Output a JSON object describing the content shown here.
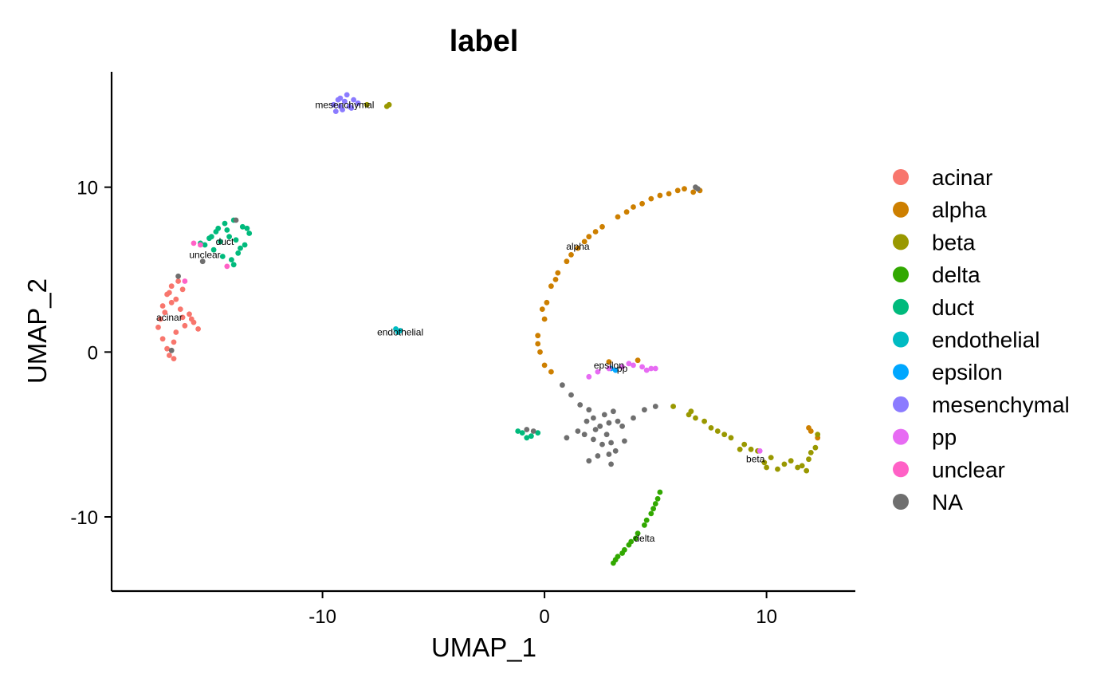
{
  "chart_data": {
    "type": "scatter",
    "title": "label",
    "xlabel": "UMAP_1",
    "ylabel": "UMAP_2",
    "xlim": [
      -19.5,
      14
    ],
    "ylim": [
      -14.5,
      17
    ],
    "xticks": [
      -10,
      0,
      10
    ],
    "xtick_labels": [
      "-10",
      "0",
      "10"
    ],
    "yticks": [
      -10,
      0,
      10
    ],
    "ytick_labels": [
      "-10",
      "0",
      "10"
    ],
    "grid": false,
    "legend": "right",
    "series": [
      {
        "name": "acinar",
        "color": "#F8766D",
        "points": [
          [
            -17.2,
            2.8
          ],
          [
            -17.0,
            3.5
          ],
          [
            -16.8,
            4.0
          ],
          [
            -16.5,
            4.3
          ],
          [
            -16.3,
            3.8
          ],
          [
            -16.8,
            3.0
          ],
          [
            -17.3,
            2.0
          ],
          [
            -17.4,
            1.5
          ],
          [
            -17.2,
            0.8
          ],
          [
            -17.0,
            0.2
          ],
          [
            -16.9,
            -0.2
          ],
          [
            -16.6,
            1.2
          ],
          [
            -16.3,
            2.1
          ],
          [
            -16.0,
            2.3
          ],
          [
            -15.8,
            1.8
          ],
          [
            -15.6,
            1.4
          ],
          [
            -16.9,
            3.6
          ],
          [
            -16.6,
            3.2
          ],
          [
            -17.1,
            2.4
          ],
          [
            -16.7,
            0.6
          ],
          [
            -16.4,
            2.6
          ],
          [
            -15.9,
            2.0
          ],
          [
            -16.7,
            -0.4
          ],
          [
            -16.2,
            1.6
          ]
        ]
      },
      {
        "name": "alpha",
        "color": "#CD7F00",
        "points": [
          [
            0.0,
            2.0
          ],
          [
            0.1,
            3.0
          ],
          [
            0.3,
            4.0
          ],
          [
            0.6,
            4.8
          ],
          [
            1.0,
            5.5
          ],
          [
            1.5,
            6.3
          ],
          [
            2.0,
            7.0
          ],
          [
            2.6,
            7.6
          ],
          [
            3.3,
            8.2
          ],
          [
            4.0,
            8.8
          ],
          [
            4.8,
            9.3
          ],
          [
            5.6,
            9.6
          ],
          [
            6.3,
            9.9
          ],
          [
            7.0,
            9.8
          ],
          [
            -0.3,
            1.0
          ],
          [
            -0.2,
            0.0
          ],
          [
            0.0,
            -0.8
          ],
          [
            0.3,
            -1.2
          ],
          [
            1.2,
            5.9
          ],
          [
            2.3,
            7.3
          ],
          [
            3.7,
            8.5
          ],
          [
            5.2,
            9.5
          ],
          [
            6.7,
            9.7
          ],
          [
            -0.1,
            2.6
          ],
          [
            0.5,
            4.4
          ],
          [
            1.8,
            6.7
          ],
          [
            4.4,
            9.0
          ],
          [
            6.0,
            9.8
          ],
          [
            -0.3,
            0.5
          ],
          [
            2.9,
            -0.6
          ],
          [
            4.2,
            -0.5
          ],
          [
            12.0,
            -4.8
          ],
          [
            12.3,
            -5.2
          ],
          [
            11.9,
            -4.6
          ]
        ]
      },
      {
        "name": "beta",
        "color": "#999800",
        "points": [
          [
            5.8,
            -3.3
          ],
          [
            6.5,
            -3.8
          ],
          [
            7.2,
            -4.2
          ],
          [
            7.8,
            -4.8
          ],
          [
            8.4,
            -5.2
          ],
          [
            9.0,
            -5.6
          ],
          [
            9.6,
            -6.0
          ],
          [
            10.2,
            -6.4
          ],
          [
            10.8,
            -6.8
          ],
          [
            11.4,
            -7.0
          ],
          [
            11.9,
            -6.5
          ],
          [
            12.2,
            -5.8
          ],
          [
            12.3,
            -5.0
          ],
          [
            11.6,
            -6.9
          ],
          [
            10.5,
            -7.1
          ],
          [
            9.9,
            -6.7
          ],
          [
            8.8,
            -5.9
          ],
          [
            7.5,
            -4.6
          ],
          [
            6.8,
            -4.0
          ],
          [
            11.1,
            -6.6
          ],
          [
            12.0,
            -6.1
          ],
          [
            10.0,
            -7.0
          ],
          [
            9.3,
            -5.9
          ],
          [
            8.1,
            -5.0
          ],
          [
            -7.1,
            14.9
          ],
          [
            -7.0,
            15.0
          ],
          [
            -8.0,
            15.0
          ],
          [
            6.6,
            -3.6
          ],
          [
            11.8,
            -7.2
          ]
        ]
      },
      {
        "name": "delta",
        "color": "#31A800",
        "points": [
          [
            5.2,
            -8.5
          ],
          [
            5.0,
            -9.2
          ],
          [
            4.8,
            -9.8
          ],
          [
            4.5,
            -10.5
          ],
          [
            4.2,
            -11.0
          ],
          [
            3.9,
            -11.5
          ],
          [
            3.6,
            -12.0
          ],
          [
            3.3,
            -12.4
          ],
          [
            3.1,
            -12.8
          ],
          [
            4.1,
            -11.3
          ],
          [
            4.6,
            -10.2
          ],
          [
            5.1,
            -8.9
          ],
          [
            3.5,
            -12.2
          ],
          [
            3.8,
            -11.7
          ],
          [
            4.9,
            -9.5
          ],
          [
            3.2,
            -12.6
          ]
        ]
      },
      {
        "name": "duct",
        "color": "#00BA7C",
        "points": [
          [
            -15.3,
            6.5
          ],
          [
            -15.0,
            7.0
          ],
          [
            -14.7,
            7.5
          ],
          [
            -14.4,
            7.8
          ],
          [
            -14.0,
            8.0
          ],
          [
            -13.6,
            7.6
          ],
          [
            -13.3,
            7.2
          ],
          [
            -13.5,
            6.5
          ],
          [
            -13.8,
            6.0
          ],
          [
            -14.1,
            5.6
          ],
          [
            -14.5,
            5.8
          ],
          [
            -14.9,
            6.2
          ],
          [
            -14.2,
            7.0
          ],
          [
            -13.9,
            6.8
          ],
          [
            -14.6,
            6.7
          ],
          [
            -15.1,
            6.9
          ],
          [
            -13.4,
            7.5
          ],
          [
            -14.3,
            7.4
          ],
          [
            -13.7,
            6.3
          ],
          [
            -14.0,
            5.3
          ],
          [
            -15.5,
            6.6
          ],
          [
            -14.8,
            7.3
          ],
          [
            -1.2,
            -4.8
          ],
          [
            -1.0,
            -4.9
          ],
          [
            -0.8,
            -5.2
          ],
          [
            -0.6,
            -5.1
          ],
          [
            -0.3,
            -4.9
          ]
        ]
      },
      {
        "name": "endothelial",
        "color": "#00BBC2",
        "points": [
          [
            -6.7,
            1.4
          ],
          [
            -6.5,
            1.3
          ],
          [
            -6.6,
            1.2
          ]
        ]
      },
      {
        "name": "epsilon",
        "color": "#00A7FF",
        "points": [
          [
            3.0,
            -1.0
          ],
          [
            3.2,
            -1.1
          ]
        ]
      },
      {
        "name": "mesenchymal",
        "color": "#8B7BFF",
        "points": [
          [
            -9.5,
            15.0
          ],
          [
            -9.2,
            15.4
          ],
          [
            -8.9,
            15.6
          ],
          [
            -8.6,
            15.3
          ],
          [
            -8.8,
            14.9
          ],
          [
            -9.1,
            14.7
          ],
          [
            -9.4,
            14.6
          ],
          [
            -9.0,
            15.2
          ],
          [
            -8.4,
            15.1
          ],
          [
            -9.3,
            15.3
          ],
          [
            -8.7,
            14.8
          ],
          [
            -9.2,
            14.9
          ]
        ]
      },
      {
        "name": "pp",
        "color": "#E76BF3",
        "points": [
          [
            2.0,
            -1.5
          ],
          [
            2.4,
            -1.2
          ],
          [
            2.9,
            -1.0
          ],
          [
            3.5,
            -0.9
          ],
          [
            4.0,
            -0.8
          ],
          [
            4.4,
            -0.9
          ],
          [
            4.8,
            -1.0
          ],
          [
            5.0,
            -1.0
          ],
          [
            3.8,
            -0.7
          ],
          [
            4.6,
            -1.1
          ],
          [
            9.7,
            -6.0
          ]
        ]
      },
      {
        "name": "unclear",
        "color": "#FF61C6",
        "points": [
          [
            -15.8,
            6.6
          ],
          [
            -15.5,
            6.5
          ],
          [
            -14.3,
            5.2
          ],
          [
            -16.2,
            4.3
          ]
        ]
      },
      {
        "name": "NA",
        "color": "#6F6F6F",
        "points": [
          [
            2.0,
            -3.5
          ],
          [
            2.2,
            -4.0
          ],
          [
            2.5,
            -4.5
          ],
          [
            2.8,
            -5.0
          ],
          [
            3.0,
            -5.5
          ],
          [
            3.2,
            -6.0
          ],
          [
            2.6,
            -5.6
          ],
          [
            2.2,
            -5.3
          ],
          [
            1.8,
            -5.0
          ],
          [
            1.5,
            -4.8
          ],
          [
            3.5,
            -4.5
          ],
          [
            4.0,
            -4.0
          ],
          [
            4.5,
            -3.5
          ],
          [
            5.0,
            -3.3
          ],
          [
            3.3,
            -4.2
          ],
          [
            2.9,
            -4.3
          ],
          [
            2.4,
            -6.3
          ],
          [
            3.0,
            -6.8
          ],
          [
            2.0,
            -6.6
          ],
          [
            1.6,
            -3.2
          ],
          [
            1.2,
            -2.6
          ],
          [
            0.8,
            -2.0
          ],
          [
            3.6,
            -5.4
          ],
          [
            2.7,
            -3.8
          ],
          [
            1.9,
            -4.2
          ],
          [
            3.1,
            -3.6
          ],
          [
            2.3,
            -4.7
          ],
          [
            2.9,
            -6.2
          ],
          [
            -0.5,
            -4.8
          ],
          [
            -0.8,
            -4.7
          ],
          [
            1.0,
            -5.2
          ],
          [
            -15.4,
            5.5
          ],
          [
            -16.5,
            4.6
          ],
          [
            -16.8,
            0.1
          ],
          [
            -13.9,
            8.0
          ],
          [
            6.8,
            10.0
          ],
          [
            6.9,
            9.9
          ]
        ]
      }
    ],
    "annotations": [
      {
        "text": "mesenchymal",
        "x": -9.0,
        "y": 15.0
      },
      {
        "text": "duct",
        "x": -14.4,
        "y": 6.7
      },
      {
        "text": "unclear",
        "x": -15.3,
        "y": 5.9
      },
      {
        "text": "acinar",
        "x": -16.9,
        "y": 2.1
      },
      {
        "text": "endothelial",
        "x": -6.5,
        "y": 1.2
      },
      {
        "text": "alpha",
        "x": 1.5,
        "y": 6.4
      },
      {
        "text": "epsilon",
        "x": 2.9,
        "y": -0.8
      },
      {
        "text": "pp",
        "x": 3.5,
        "y": -1.0
      },
      {
        "text": "beta",
        "x": 9.5,
        "y": -6.5
      },
      {
        "text": "delta",
        "x": 4.5,
        "y": -11.3
      }
    ]
  }
}
